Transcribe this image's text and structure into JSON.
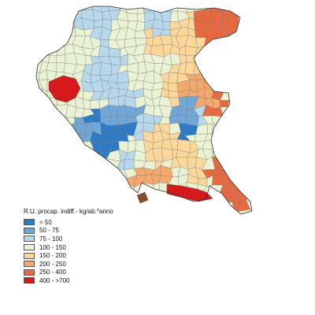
{
  "legend": {
    "title": "R.U. procap. indiff.- kg/ab.*anno",
    "classes": [
      {
        "label": "< 50",
        "color": "#2b7bc6"
      },
      {
        "label": "50 - 75",
        "color": "#6fa7d7"
      },
      {
        "label": "75 - 100",
        "color": "#b6d8ea"
      },
      {
        "label": "100 - 150",
        "color": "#e9f2d2"
      },
      {
        "label": "150 - 200",
        "color": "#fbd79a"
      },
      {
        "label": "200 - 250",
        "color": "#f5a86b"
      },
      {
        "label": "250 - 400",
        "color": "#e8683f"
      },
      {
        "label": "400 - >700",
        "color": "#d7191c"
      }
    ]
  },
  "map": {
    "boundary_color": "#7a7a7a",
    "region_outline_color": "#333333"
  }
}
